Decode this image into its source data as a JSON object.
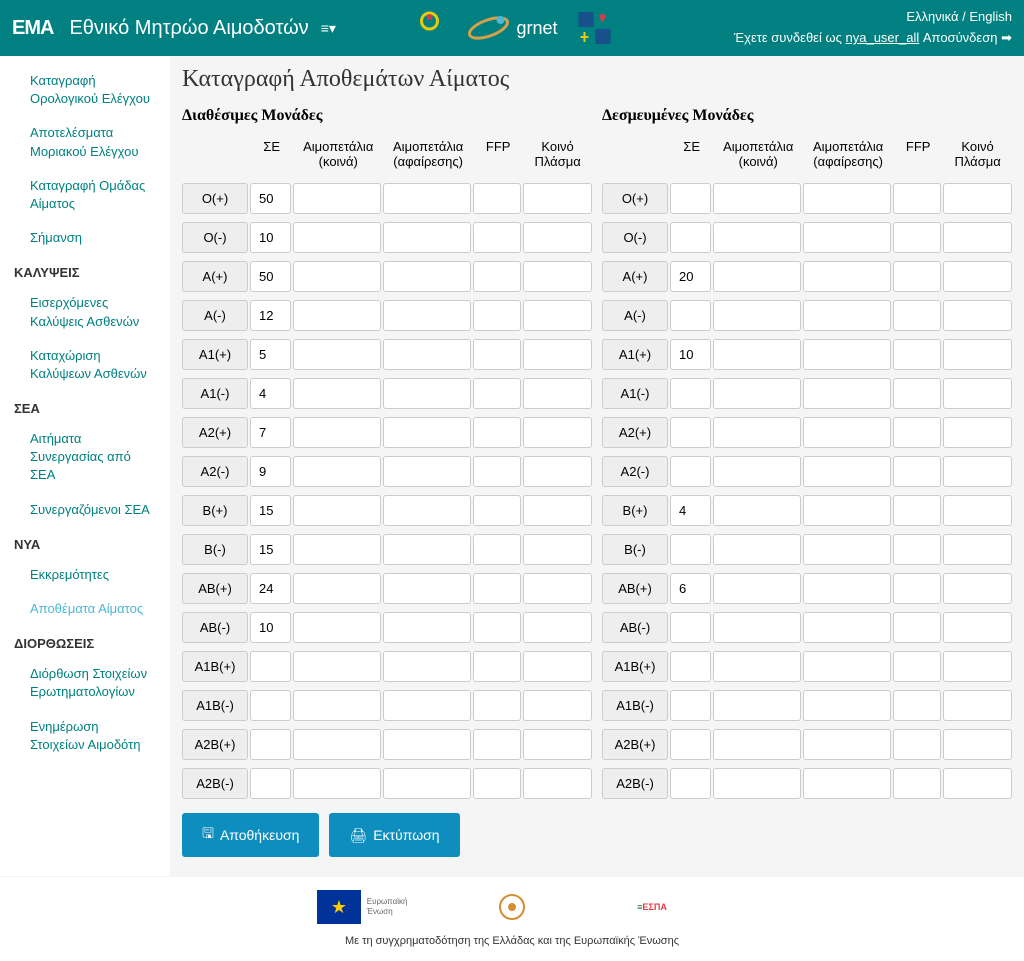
{
  "header": {
    "logo_text": "EMA",
    "app_title": "Εθνικό Μητρώο Αιμοδοτών",
    "lang_el": "Ελληνικά",
    "lang_en": "English",
    "logged_in_prefix": "Έχετε συνδεθεί ως",
    "username": "nya_user_all",
    "logout": "Αποσύνδεση",
    "grnet": "grnet"
  },
  "sidebar": {
    "items_top": [
      "Καταγραφή Ορολογικού Ελέγχου",
      "Αποτελέσματα Μοριακού Ελέγχου",
      "Καταγραφή Ομάδας Αίματος",
      "Σήμανση"
    ],
    "section_cov": "ΚΑΛΥΨΕΙΣ",
    "items_cov": [
      "Εισερχόμενες Καλύψεις Ασθενών",
      "Καταχώριση Καλύψεων Ασθενών"
    ],
    "section_sea": "ΣΕΑ",
    "items_sea": [
      "Αιτήματα Συνεργασίας από ΣΕΑ",
      "Συνεργαζόμενοι ΣΕΑ"
    ],
    "section_nya": "ΝΥΑ",
    "items_nya": [
      "Εκκρεμότητες",
      "Αποθέματα Αίματος"
    ],
    "section_fix": "ΔΙΟΡΘΩΣΕΙΣ",
    "items_fix": [
      "Διόρθωση Στοιχείων Ερωτηματολογίων",
      "Ενημέρωση Στοιχείων Αιμοδότη"
    ]
  },
  "page": {
    "title": "Καταγραφή Αποθεμάτων Αίματος",
    "available_title": "Διαθέσιμες Μονάδες",
    "reserved_title": "Δεσμευμένες Μονάδες",
    "columns": [
      "ΣΕ",
      "Αιμοπετάλια (κοινά)",
      "Αιμοπετάλια (αφαίρεσης)",
      "FFP",
      "Κοινό Πλάσμα"
    ],
    "rows": [
      "O(+)",
      "O(-)",
      "A(+)",
      "A(-)",
      "A1(+)",
      "A1(-)",
      "A2(+)",
      "A2(-)",
      "B(+)",
      "B(-)",
      "AB(+)",
      "AB(-)",
      "A1B(+)",
      "A1B(-)",
      "A2B(+)",
      "A2B(-)"
    ],
    "available_values": {
      "0": {
        "0": "50"
      },
      "1": {
        "0": "10"
      },
      "2": {
        "0": "50"
      },
      "3": {
        "0": "12"
      },
      "4": {
        "0": "5"
      },
      "5": {
        "0": "4"
      },
      "6": {
        "0": "7"
      },
      "7": {
        "0": "9"
      },
      "8": {
        "0": "15"
      },
      "9": {
        "0": "15"
      },
      "10": {
        "0": "24"
      },
      "11": {
        "0": "10"
      }
    },
    "reserved_values": {
      "2": {
        "0": "20"
      },
      "4": {
        "0": "10"
      },
      "8": {
        "0": "4"
      },
      "10": {
        "0": "6"
      }
    },
    "btn_save": "Αποθήκευση",
    "btn_print": "Εκτύπωση"
  },
  "footer": {
    "text": "Με τη συγχρηματοδότηση της Ελλάδας και της Ευρωπαϊκής Ένωσης",
    "eu": "Ευρωπαϊκή Ένωση",
    "espa": "ΕΣΠΑ"
  }
}
